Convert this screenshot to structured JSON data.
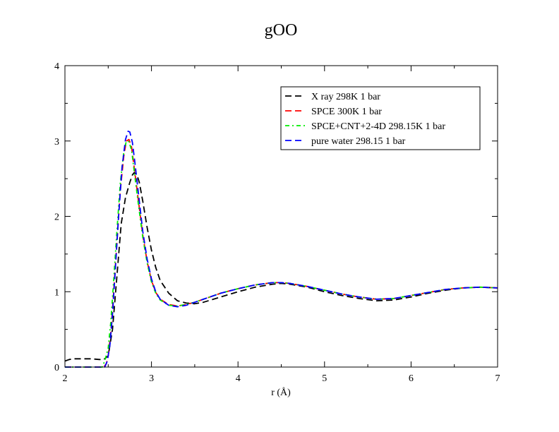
{
  "chart_data": {
    "type": "line",
    "title": "gOO",
    "xlabel": "r (Å)",
    "ylabel": "",
    "xlim": [
      2,
      7
    ],
    "ylim": [
      0,
      4
    ],
    "xticks": [
      2,
      3,
      4,
      5,
      6,
      7
    ],
    "yticks": [
      0,
      1,
      2,
      3,
      4
    ],
    "grid": false,
    "legend_position": "top-right",
    "series": [
      {
        "name": "X ray 298K 1 bar",
        "color": "#000000",
        "dash": "dashed",
        "x": [
          2.0,
          2.05,
          2.1,
          2.2,
          2.3,
          2.4,
          2.45,
          2.5,
          2.55,
          2.6,
          2.65,
          2.7,
          2.75,
          2.78,
          2.8,
          2.83,
          2.86,
          2.9,
          2.95,
          3.0,
          3.05,
          3.1,
          3.2,
          3.3,
          3.4,
          3.5,
          3.6,
          3.8,
          4.0,
          4.2,
          4.4,
          4.5,
          4.6,
          4.8,
          5.0,
          5.2,
          5.4,
          5.6,
          5.8,
          6.0,
          6.2,
          6.4,
          6.6,
          6.8,
          7.0
        ],
        "y": [
          0.08,
          0.1,
          0.11,
          0.11,
          0.11,
          0.1,
          0.1,
          0.15,
          0.5,
          1.2,
          1.9,
          2.25,
          2.45,
          2.55,
          2.58,
          2.56,
          2.45,
          2.2,
          1.85,
          1.55,
          1.32,
          1.15,
          0.98,
          0.88,
          0.85,
          0.84,
          0.86,
          0.93,
          1.0,
          1.06,
          1.1,
          1.11,
          1.1,
          1.06,
          1.0,
          0.95,
          0.91,
          0.88,
          0.89,
          0.93,
          0.98,
          1.02,
          1.05,
          1.06,
          1.05
        ]
      },
      {
        "name": "SPCE 300K 1 bar",
        "color": "#ff0000",
        "dash": "dashed",
        "x": [
          2.0,
          2.45,
          2.48,
          2.5,
          2.53,
          2.56,
          2.6,
          2.64,
          2.68,
          2.71,
          2.74,
          2.77,
          2.8,
          2.85,
          2.9,
          2.95,
          3.0,
          3.05,
          3.1,
          3.2,
          3.3,
          3.4,
          3.5,
          3.6,
          3.8,
          4.0,
          4.2,
          4.4,
          4.5,
          4.6,
          4.8,
          5.0,
          5.2,
          5.4,
          5.6,
          5.8,
          6.0,
          6.2,
          6.4,
          6.6,
          6.8,
          7.0
        ],
        "y": [
          0.0,
          0.0,
          0.05,
          0.15,
          0.45,
          0.95,
          1.65,
          2.35,
          2.8,
          3.0,
          3.02,
          2.92,
          2.65,
          2.2,
          1.75,
          1.4,
          1.15,
          0.99,
          0.9,
          0.83,
          0.81,
          0.83,
          0.86,
          0.9,
          0.98,
          1.04,
          1.09,
          1.12,
          1.12,
          1.11,
          1.07,
          1.02,
          0.97,
          0.93,
          0.9,
          0.91,
          0.95,
          0.99,
          1.03,
          1.05,
          1.06,
          1.05
        ]
      },
      {
        "name": "SPCE+CNT+2-4D 298.15K 1 bar",
        "color": "#00ee00",
        "dash": "dashdot",
        "x": [
          2.0,
          2.43,
          2.46,
          2.5,
          2.53,
          2.56,
          2.6,
          2.64,
          2.68,
          2.71,
          2.74,
          2.77,
          2.8,
          2.85,
          2.9,
          2.95,
          3.0,
          3.05,
          3.1,
          3.2,
          3.3,
          3.4,
          3.5,
          3.6,
          3.8,
          4.0,
          4.2,
          4.4,
          4.5,
          4.6,
          4.8,
          5.0,
          5.2,
          5.4,
          5.6,
          5.8,
          6.0,
          6.2,
          6.4,
          6.6,
          6.8,
          7.0
        ],
        "y": [
          0.0,
          0.0,
          0.08,
          0.25,
          0.6,
          1.1,
          1.8,
          2.45,
          2.85,
          3.0,
          2.99,
          2.88,
          2.6,
          2.15,
          1.72,
          1.38,
          1.13,
          0.98,
          0.89,
          0.82,
          0.81,
          0.83,
          0.86,
          0.9,
          0.98,
          1.04,
          1.09,
          1.12,
          1.12,
          1.11,
          1.07,
          1.02,
          0.97,
          0.93,
          0.9,
          0.91,
          0.95,
          0.99,
          1.03,
          1.05,
          1.06,
          1.05
        ]
      },
      {
        "name": "pure water 298.15 1 bar",
        "color": "#0000ff",
        "dash": "dashed",
        "x": [
          2.0,
          2.46,
          2.49,
          2.52,
          2.55,
          2.58,
          2.62,
          2.66,
          2.7,
          2.73,
          2.75,
          2.78,
          2.81,
          2.86,
          2.9,
          2.95,
          3.0,
          3.05,
          3.1,
          3.2,
          3.3,
          3.4,
          3.5,
          3.6,
          3.8,
          4.0,
          4.2,
          4.4,
          4.5,
          4.6,
          4.8,
          5.0,
          5.2,
          5.4,
          5.6,
          5.8,
          6.0,
          6.2,
          6.4,
          6.6,
          6.8,
          7.0
        ],
        "y": [
          0.0,
          0.0,
          0.08,
          0.3,
          0.7,
          1.25,
          2.0,
          2.65,
          3.02,
          3.13,
          3.12,
          2.98,
          2.7,
          2.2,
          1.8,
          1.43,
          1.17,
          1.0,
          0.9,
          0.82,
          0.8,
          0.82,
          0.86,
          0.9,
          0.98,
          1.04,
          1.09,
          1.12,
          1.12,
          1.11,
          1.07,
          1.02,
          0.97,
          0.93,
          0.9,
          0.91,
          0.95,
          0.99,
          1.03,
          1.05,
          1.06,
          1.05
        ]
      }
    ]
  }
}
